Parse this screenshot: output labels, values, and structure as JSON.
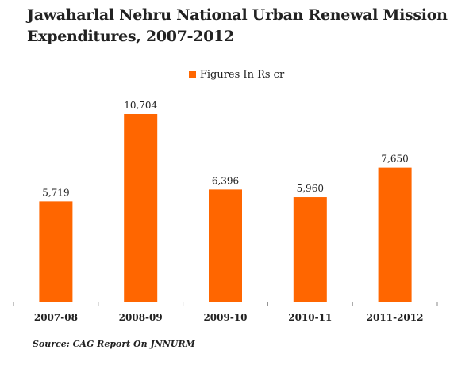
{
  "title_line1": "Jawaharlal Nehru National Urban Renewal Mission",
  "title_line2": "Expenditures, 2007-2012",
  "source": "Source: CAG Report On JNNURM",
  "colors": {
    "bar": "#ff6600",
    "axis": "#888888"
  },
  "chart_data": {
    "type": "bar",
    "categories": [
      "2007-08",
      "2008-09",
      "2009-10",
      "2010-11",
      "2011-2012"
    ],
    "series": [
      {
        "name": "Figures In Rs cr",
        "values": [
          5719,
          10704,
          6396,
          5960,
          7650
        ]
      }
    ],
    "data_labels": [
      "5,719",
      "10,704",
      "6,396",
      "5,960",
      "7,650"
    ],
    "title": "Jawaharlal Nehru National Urban Renewal Mission Expenditures, 2007-2012",
    "legend": "top-center",
    "grid": false,
    "ylim": [
      0,
      12000
    ]
  }
}
